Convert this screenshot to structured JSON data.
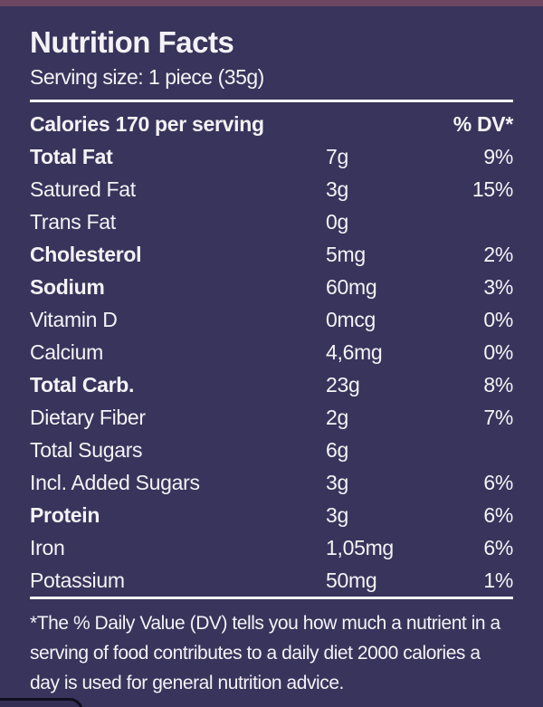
{
  "label": {
    "title": "Nutrition Facts",
    "serving_size": "Serving size: 1 piece (35g)",
    "calories_header": "Calories 170 per serving",
    "dv_header": "% DV*",
    "rows": [
      {
        "name": "Total Fat",
        "amount": "7g",
        "dv": "9%",
        "bold": true
      },
      {
        "name": "Satured Fat",
        "amount": "3g",
        "dv": "15%",
        "bold": false
      },
      {
        "name": "Trans Fat",
        "amount": "0g",
        "dv": "",
        "bold": false
      },
      {
        "name": "Cholesterol",
        "amount": "5mg",
        "dv": "2%",
        "bold": true
      },
      {
        "name": "Sodium",
        "amount": "60mg",
        "dv": "3%",
        "bold": true
      },
      {
        "name": "Vitamin D",
        "amount": "0mcg",
        "dv": "0%",
        "bold": false
      },
      {
        "name": "Calcium",
        "amount": "4,6mg",
        "dv": "0%",
        "bold": false
      },
      {
        "name": "Total Carb.",
        "amount": "23g",
        "dv": "8%",
        "bold": true
      },
      {
        "name": "Dietary Fiber",
        "amount": "2g",
        "dv": "7%",
        "bold": false
      },
      {
        "name": "Total Sugars",
        "amount": "6g",
        "dv": "",
        "bold": false
      },
      {
        "name": "Incl. Added Sugars",
        "amount": "3g",
        "dv": "6%",
        "bold": false
      },
      {
        "name": "Protein",
        "amount": "3g",
        "dv": "6%",
        "bold": true
      },
      {
        "name": "Iron",
        "amount": "1,05mg",
        "dv": "6%",
        "bold": false
      },
      {
        "name": "Potassium",
        "amount": "50mg",
        "dv": "1%",
        "bold": false
      }
    ],
    "footnote": "*The % Daily Value (DV) tells you how much a nutrient in a serving of food contributes to a daily diet 2000 calories a day is used for general nutrition advice.",
    "colors": {
      "background": "#38345B",
      "top_strip": "#6D4662",
      "text": "#F5F2F7",
      "divider": "#FBFAFD",
      "corner_outline": "#100E1E"
    }
  }
}
